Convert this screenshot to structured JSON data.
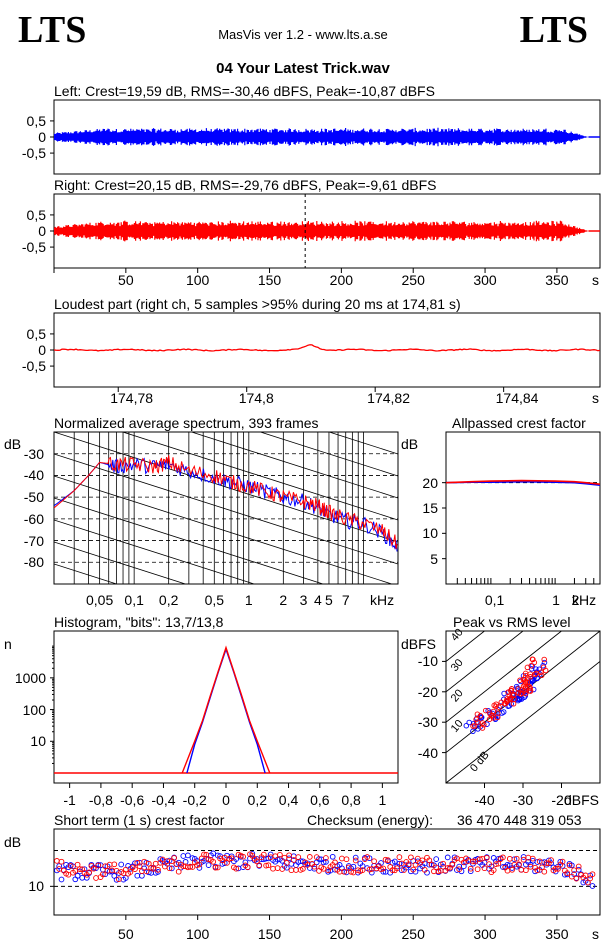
{
  "header": {
    "logo_left": "LTS",
    "logo_right": "LTS",
    "app_title": "MasVis ver 1.2 - www.lts.a.se",
    "file_name": "04 Your Latest Trick.wav"
  },
  "colors": {
    "left": "#0000ff",
    "right": "#ff0000",
    "grid": "#000000",
    "reference": "#000000"
  },
  "panels": {
    "left_waveform": {
      "title": "Left: Crest=19,59 dB, RMS=-30,46 dBFS, Peak=-10,87 dBFS",
      "yticks": [
        "0,5",
        "0",
        "-0,5"
      ]
    },
    "right_waveform": {
      "title": "Right: Crest=20,15 dB, RMS=-29,76 dBFS, Peak=-9,61 dBFS",
      "yticks": [
        "0,5",
        "0",
        "-0,5"
      ],
      "xticks": [
        "50",
        "100",
        "150",
        "200",
        "250",
        "300",
        "350"
      ],
      "xunit": "s"
    },
    "loudest": {
      "title": "Loudest part (right ch, 5 samples >95% during 20 ms at 174,81 s)",
      "yticks": [
        "0,5",
        "0",
        "-0,5"
      ],
      "xticks": [
        "174,78",
        "174,8",
        "174,82",
        "174,84"
      ],
      "xunit": "s"
    },
    "spectrum": {
      "title": "Normalized average spectrum, 393 frames",
      "yunit": "dB",
      "yticks": [
        "-30",
        "-40",
        "-50",
        "-60",
        "-70",
        "-80"
      ],
      "xticks": [
        "0,05",
        "0,1",
        "0,2",
        "0,5",
        "1",
        "2",
        "3",
        "4",
        "5",
        "7"
      ],
      "xunit": "kHz"
    },
    "allpass": {
      "title": "Allpassed crest factor",
      "yunit": "dB",
      "yticks": [
        "20",
        "15",
        "10",
        "5"
      ],
      "xticks": [
        "0,1",
        "1",
        "2"
      ],
      "xunit": "kHz"
    },
    "histogram": {
      "title": "Histogram, \"bits\": 13,7/13,8",
      "yunit": "n",
      "yticks": [
        "1000",
        "100",
        "10"
      ],
      "xticks": [
        "-1",
        "-0,8",
        "-0,6",
        "-0,4",
        "-0,2",
        "0",
        "0,2",
        "0,4",
        "0,6",
        "0,8",
        "1"
      ]
    },
    "peak_rms": {
      "title": "Peak vs RMS level",
      "yunit": "dBFS",
      "yticks": [
        "-10",
        "-20",
        "-30",
        "-40"
      ],
      "xticks": [
        "-40",
        "-30",
        "-20"
      ],
      "xunit": "dBFS",
      "diag_labels": [
        "40",
        "30",
        "20",
        "10",
        "0 dB"
      ]
    },
    "crest_short": {
      "title": "Short term (1 s) crest factor",
      "yunit": "dB",
      "yticks": [
        "10"
      ],
      "xticks": [
        "50",
        "100",
        "150",
        "200",
        "250",
        "300",
        "350"
      ],
      "xunit": "s"
    },
    "checksum": {
      "label": "Checksum (energy):",
      "value": "36 470 448 319 053"
    }
  },
  "chart_data": [
    {
      "type": "line",
      "title": "Left: Crest=19,59 dB, RMS=-30,46 dBFS, Peak=-10,87 dBFS",
      "series": [
        {
          "name": "Left",
          "envelope": {
            "start_s": 0,
            "full_level_from_s": 40,
            "end_s": 372,
            "peak_amplitude": 0.29
          }
        }
      ],
      "ylim": [
        -1,
        1
      ]
    },
    {
      "type": "line",
      "title": "Right: Crest=20,15 dB, RMS=-29,76 dBFS, Peak=-9,61 dBFS",
      "series": [
        {
          "name": "Right",
          "envelope": {
            "start_s": 0,
            "full_level_from_s": 40,
            "end_s": 372,
            "peak_amplitude": 0.33
          }
        }
      ],
      "marker_at_s": 174.81,
      "xlim": [
        0,
        380
      ],
      "ylim": [
        -1,
        1
      ]
    },
    {
      "type": "line",
      "title": "Loudest part (right ch, 5 samples >95% during 20 ms at 174,81 s)",
      "xlim": [
        174.77,
        174.855
      ],
      "ylim": [
        -1,
        1
      ],
      "peak": {
        "x": 174.81,
        "y": 0.33
      }
    },
    {
      "type": "line",
      "title": "Normalized average spectrum, 393 frames",
      "x_scale": "log",
      "xlim": [
        0.02,
        20
      ],
      "ylim": [
        -90,
        -20
      ],
      "series": [
        {
          "name": "Left",
          "x": [
            0.02,
            0.03,
            0.04,
            0.05,
            0.07,
            0.1,
            0.15,
            0.2,
            0.3,
            0.5,
            0.7,
            1,
            1.5,
            2,
            3,
            4,
            5,
            7,
            10,
            15,
            20
          ],
          "y": [
            -54,
            -47,
            -40,
            -34,
            -36,
            -35,
            -36,
            -35,
            -38,
            -41,
            -43,
            -45,
            -48,
            -50,
            -52,
            -55,
            -58,
            -61,
            -62,
            -67,
            -73
          ]
        },
        {
          "name": "Right",
          "x": [
            0.02,
            0.03,
            0.04,
            0.05,
            0.07,
            0.1,
            0.15,
            0.2,
            0.3,
            0.5,
            0.7,
            1,
            1.5,
            2,
            3,
            4,
            5,
            7,
            10,
            15,
            20
          ],
          "y": [
            -55,
            -47,
            -40,
            -34,
            -35,
            -35,
            -36,
            -34,
            -38,
            -40,
            -43,
            -45,
            -48,
            -50,
            -52,
            -54,
            -57,
            -60,
            -62,
            -66,
            -72
          ]
        }
      ]
    },
    {
      "type": "line",
      "title": "Allpassed crest factor",
      "x_scale": "log",
      "xlim": [
        0.02,
        5
      ],
      "ylim": [
        0,
        30
      ],
      "series": [
        {
          "name": "Left",
          "x": [
            0.02,
            0.05,
            0.1,
            0.3,
            1,
            2,
            3,
            5
          ],
          "y": [
            20,
            20.1,
            20.1,
            20.2,
            20.1,
            20,
            19.8,
            19.5
          ]
        },
        {
          "name": "Right",
          "x": [
            0.02,
            0.05,
            0.1,
            0.3,
            1,
            2,
            3,
            5
          ],
          "y": [
            20,
            20.2,
            20.3,
            20.4,
            20.3,
            20.2,
            20,
            19.7
          ]
        }
      ]
    },
    {
      "type": "line",
      "title": "Histogram, \"bits\": 13,7/13,8",
      "y_scale": "log",
      "xlim": [
        -1.1,
        1.1
      ],
      "ylim": [
        1,
        30000
      ],
      "series": [
        {
          "name": "Left",
          "x": [
            -0.25,
            -0.2,
            -0.15,
            -0.1,
            -0.05,
            0,
            0.05,
            0.1,
            0.15,
            0.2,
            0.25
          ],
          "y": [
            1,
            8,
            40,
            250,
            1500,
            8000,
            1500,
            250,
            40,
            8,
            1
          ]
        },
        {
          "name": "Right",
          "x": [
            -0.28,
            -0.2,
            -0.15,
            -0.1,
            -0.05,
            0,
            0.05,
            0.1,
            0.15,
            0.2,
            0.28
          ],
          "y": [
            1,
            10,
            45,
            280,
            1600,
            9000,
            1600,
            280,
            45,
            10,
            1
          ]
        }
      ]
    },
    {
      "type": "scatter",
      "title": "Peak vs RMS level",
      "xlabel": "dBFS",
      "ylabel": "dBFS",
      "xlim": [
        -50,
        -10
      ],
      "ylim": [
        -50,
        0
      ],
      "series": [
        {
          "name": "Left",
          "x": [
            -43,
            -41,
            -39,
            -37,
            -35,
            -33,
            -32,
            -31,
            -30,
            -29,
            -28,
            -27,
            -26
          ],
          "y": [
            -32,
            -30,
            -28,
            -26,
            -24,
            -22,
            -21,
            -20,
            -19,
            -18,
            -16,
            -14,
            -12
          ]
        },
        {
          "name": "Right",
          "x": [
            -42,
            -40,
            -38,
            -36,
            -34,
            -33,
            -32,
            -31,
            -30,
            -29,
            -28,
            -27,
            -26
          ],
          "y": [
            -31,
            -29,
            -27,
            -25,
            -23,
            -22,
            -21,
            -19,
            -18,
            -17,
            -15,
            -13,
            -11
          ]
        }
      ]
    },
    {
      "type": "scatter",
      "title": "Short term (1 s) crest factor",
      "xlim": [
        0,
        380
      ],
      "ylim": [
        6,
        18
      ],
      "series": [
        {
          "name": "Left",
          "x": [
            5,
            50,
            100,
            150,
            200,
            250,
            300,
            350,
            375
          ],
          "y": [
            12,
            12,
            13.5,
            13.5,
            13,
            13,
            13,
            13,
            11
          ]
        },
        {
          "name": "Right",
          "x": [
            5,
            50,
            100,
            150,
            200,
            250,
            300,
            350,
            375
          ],
          "y": [
            12.5,
            12,
            13.5,
            13.5,
            13,
            13,
            13,
            13,
            11
          ]
        }
      ],
      "reference_lines": [
        10,
        15
      ]
    }
  ]
}
